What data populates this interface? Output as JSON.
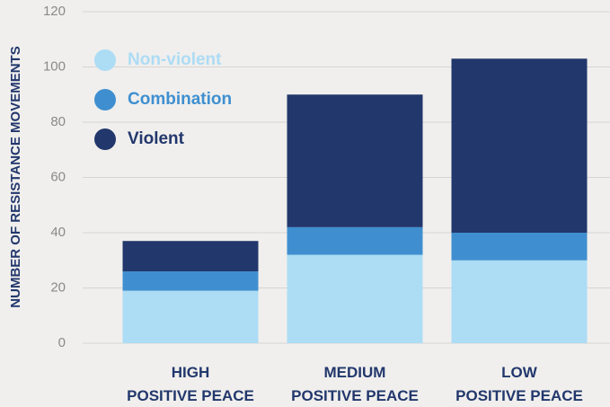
{
  "chart_data": {
    "type": "stacked_bar",
    "y_axis_label": "NUMBER OF RESISTANCE MOVEMENTS",
    "categories": [
      "HIGH\nPOSITIVE PEACE",
      "MEDIUM\nPOSITIVE PEACE",
      "LOW\nPOSITIVE PEACE"
    ],
    "series": [
      {
        "name": "Non-violent",
        "color": "#addcf5",
        "values": [
          19,
          32,
          30
        ]
      },
      {
        "name": "Combination",
        "color": "#3f8fd0",
        "values": [
          7,
          10,
          10
        ]
      },
      {
        "name": "Violent",
        "color": "#22376c",
        "values": [
          11,
          48,
          63
        ]
      }
    ],
    "ylim": [
      0,
      120
    ],
    "yticks": [
      0,
      20,
      40,
      60,
      80,
      100,
      120
    ],
    "grid": true
  }
}
